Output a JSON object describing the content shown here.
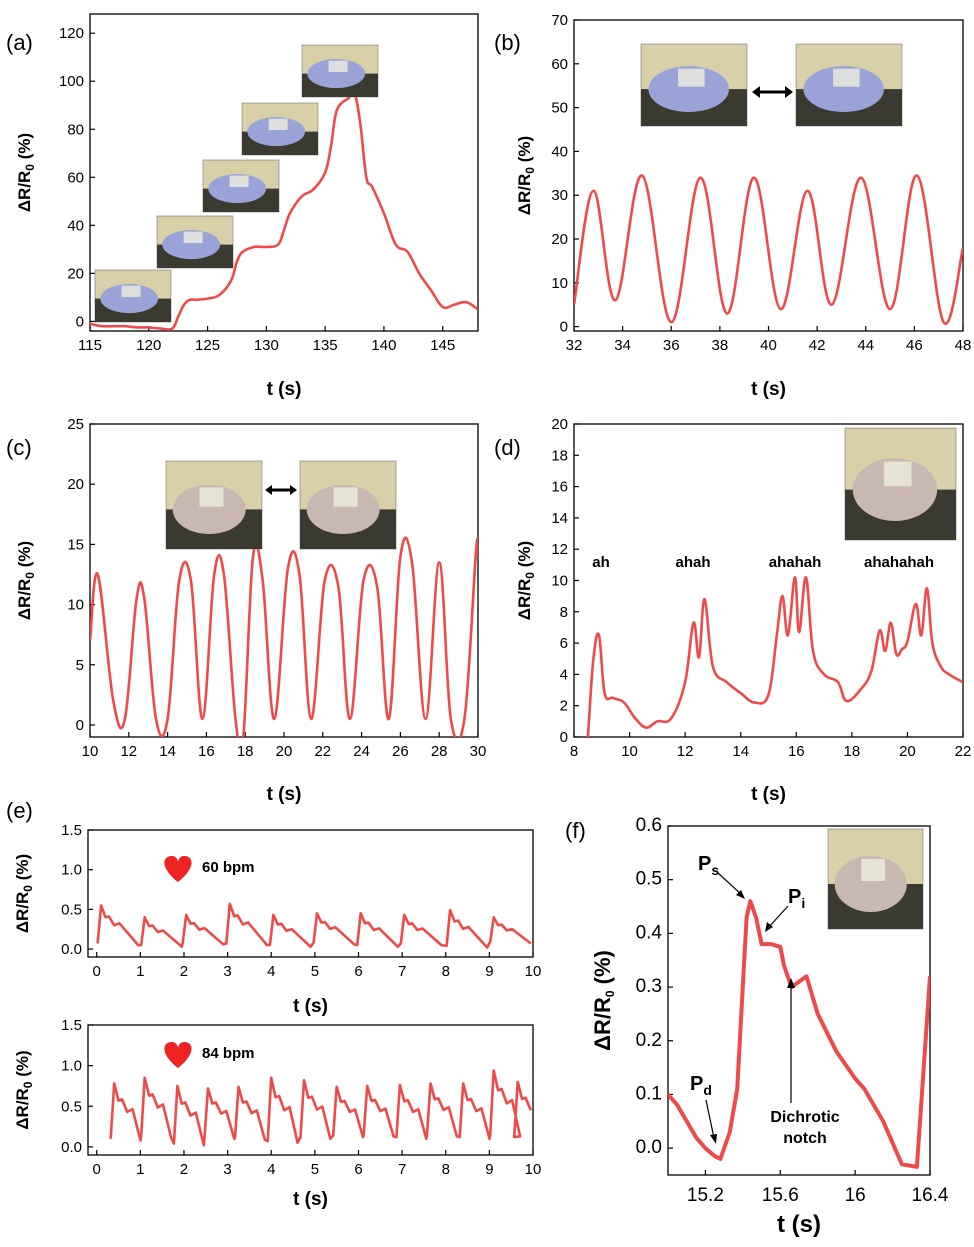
{
  "figure": {
    "colors": {
      "line": "#ef4a4a",
      "axis": "#000000",
      "heart": "#ee2222",
      "photo_skin": "#c9b7b2",
      "photo_glove": "#9aa3d8"
    }
  },
  "chart_data": [
    {
      "id": "a",
      "panel_label": "(a)",
      "type": "line",
      "xlabel": "t (s)",
      "ylabel": "ΔR/R0 (%)",
      "xlim": [
        115,
        148
      ],
      "ylim": [
        -4,
        128
      ],
      "xticks": [
        115,
        120,
        125,
        130,
        135,
        140,
        145
      ],
      "yticks": [
        0,
        20,
        40,
        60,
        80,
        100,
        120
      ],
      "grid": false,
      "series": [
        {
          "x": [
            115,
            116,
            117,
            118,
            119,
            120,
            121,
            122,
            122.5,
            123,
            123.5,
            124,
            125,
            126,
            127,
            127.5,
            128,
            129,
            130,
            131,
            131.5,
            132,
            133,
            134,
            135,
            135.5,
            136,
            137,
            137.5,
            138,
            138.5,
            139,
            140,
            141,
            142,
            143,
            144,
            145,
            146,
            147,
            148
          ],
          "y": [
            -1,
            -2,
            -2,
            -2,
            -2.5,
            -2.5,
            -3,
            -3,
            2,
            7,
            9,
            9,
            9.5,
            11,
            17,
            25,
            29,
            31,
            31,
            32,
            38,
            45,
            52,
            55,
            62,
            73,
            88,
            93,
            95,
            82,
            60,
            56,
            45,
            32,
            29,
            20,
            13,
            6,
            7,
            8,
            5
          ]
        }
      ],
      "inset": "photo: gloved finger bending"
    },
    {
      "id": "b",
      "panel_label": "(b)",
      "type": "line",
      "xlabel": "t (s)",
      "ylabel": "ΔR/R0 (%)",
      "xlim": [
        32,
        48
      ],
      "ylim": [
        -1,
        70
      ],
      "xticks": [
        32,
        34,
        36,
        38,
        40,
        42,
        44,
        46,
        48
      ],
      "yticks": [
        0,
        10,
        20,
        30,
        40,
        50,
        60,
        70
      ],
      "grid": false,
      "series": [
        {
          "x": [
            32,
            32.8,
            33.7,
            34.8,
            36,
            37.2,
            38.3,
            39.4,
            40.5,
            41.6,
            42.6,
            43.8,
            45,
            46.1,
            47.2,
            48
          ],
          "y": [
            5,
            31,
            6,
            34.5,
            1,
            34,
            3,
            34,
            4,
            31,
            5,
            34,
            4,
            34.5,
            1,
            18
          ]
        }
      ],
      "inset": "photos: finger straight ↔ finger bent"
    },
    {
      "id": "c",
      "panel_label": "(c)",
      "type": "line",
      "xlabel": "t (s)",
      "ylabel": "ΔR/R0 (%)",
      "xlim": [
        10,
        30
      ],
      "ylim": [
        -1,
        25
      ],
      "xticks": [
        10,
        12,
        14,
        16,
        18,
        20,
        22,
        24,
        26,
        28,
        30
      ],
      "yticks": [
        0,
        5,
        10,
        15,
        20,
        25
      ],
      "grid": false,
      "series": [
        {
          "x": [
            10,
            10.4,
            11.2,
            11.8,
            12.4,
            12.8,
            13.4,
            14.0,
            14.6,
            15.2,
            15.8,
            16.4,
            16.9,
            17.5,
            17.9,
            18.4,
            18.9,
            19.5,
            20.2,
            20.8,
            21.4,
            22.1,
            22.8,
            23.4,
            24.1,
            24.8,
            25.4,
            26.0,
            26.6,
            27.3,
            28.0,
            28.6,
            29.3,
            29.9,
            30
          ],
          "y": [
            7,
            12.5,
            2,
            0.5,
            10.5,
            10.5,
            0.5,
            0.5,
            12,
            12,
            0.5,
            12.5,
            12.5,
            0.5,
            -1,
            14,
            12,
            0.5,
            13,
            12.5,
            0.5,
            12,
            11.5,
            0.5,
            12,
            11.5,
            0.5,
            14,
            13.5,
            0.5,
            13.5,
            0.5,
            0.5,
            14.5,
            14
          ]
        }
      ],
      "inset": "photos: open hand ↔ fist"
    },
    {
      "id": "d",
      "panel_label": "(d)",
      "type": "line",
      "xlabel": "t (s)",
      "ylabel": "ΔR/R0 (%)",
      "xlim": [
        8,
        22
      ],
      "ylim": [
        0,
        20
      ],
      "xticks": [
        8,
        10,
        12,
        14,
        16,
        18,
        20,
        22
      ],
      "yticks": [
        0,
        2,
        4,
        6,
        8,
        10,
        12,
        14,
        16,
        18,
        20
      ],
      "grid": false,
      "annotations": [
        "ah",
        "ahah",
        "ahahah",
        "ahahahah"
      ],
      "series": [
        {
          "x": [
            8.5,
            8.7,
            8.9,
            9.1,
            9.4,
            9.8,
            10.2,
            10.6,
            11,
            11.5,
            12,
            12.3,
            12.5,
            12.7,
            13,
            13.5,
            14,
            14.5,
            15,
            15.3,
            15.5,
            15.7,
            15.95,
            16.1,
            16.35,
            16.6,
            17,
            17.5,
            17.8,
            18.3,
            18.7,
            19,
            19.2,
            19.4,
            19.6,
            19.8,
            20,
            20.3,
            20.5,
            20.7,
            20.9,
            21.2,
            21.5,
            22
          ],
          "y": [
            0,
            5,
            6.5,
            2.8,
            2.5,
            2.2,
            1.2,
            0.6,
            1,
            1.2,
            3.5,
            7.3,
            5.1,
            8.8,
            4.5,
            3.5,
            2.8,
            2.2,
            2.7,
            6.5,
            9,
            6.5,
            10.2,
            6.7,
            10.2,
            5.5,
            4,
            3.5,
            2.3,
            3,
            4.2,
            6.8,
            5.5,
            7.3,
            5.3,
            5.6,
            6.1,
            8.5,
            6.5,
            9.5,
            6,
            4.5,
            4,
            3.5
          ]
        }
      ],
      "inset": "photo: sensor on throat"
    },
    {
      "id": "e1",
      "panel_label": "(e)",
      "type": "line",
      "xlabel": "t (s)",
      "ylabel": "ΔR/R0 (%)",
      "xlim": [
        -0.2,
        10
      ],
      "ylim": [
        -0.1,
        1.5
      ],
      "xticks": [
        0,
        1,
        2,
        3,
        4,
        5,
        6,
        7,
        8,
        9,
        10
      ],
      "yticks": [
        0.0,
        0.5,
        1.0,
        1.5
      ],
      "grid": false,
      "annotations": [
        "60 bpm"
      ],
      "series": [
        {
          "pulse_times": [
            0.1,
            1.1,
            2.05,
            3.05,
            4.05,
            5.05,
            6.05,
            7.05,
            8.1,
            9.1
          ],
          "peaks": [
            0.55,
            0.4,
            0.43,
            0.57,
            0.43,
            0.45,
            0.45,
            0.43,
            0.49,
            0.4
          ],
          "troughs": [
            0.05,
            0.03,
            0.06,
            0.05,
            0.03,
            0.06,
            0.03,
            0.05,
            0.02,
            0.07
          ],
          "period": 1.0
        }
      ]
    },
    {
      "id": "e2",
      "panel_label": "",
      "type": "line",
      "xlabel": "t (s)",
      "ylabel": "ΔR/R0 (%)",
      "xlim": [
        -0.2,
        10
      ],
      "ylim": [
        -0.1,
        1.5
      ],
      "xticks": [
        0,
        1,
        2,
        3,
        4,
        5,
        6,
        7,
        8,
        9,
        10
      ],
      "yticks": [
        0.0,
        0.5,
        1.0,
        1.5
      ],
      "grid": false,
      "annotations": [
        "84 bpm"
      ],
      "series": [
        {
          "pulse_times": [
            0.4,
            1.1,
            1.85,
            2.55,
            3.25,
            4.0,
            4.75,
            5.5,
            6.2,
            6.95,
            7.65,
            8.4,
            9.1,
            9.65
          ],
          "peaks": [
            0.78,
            0.85,
            0.75,
            0.72,
            0.74,
            0.85,
            0.82,
            0.74,
            0.75,
            0.76,
            0.78,
            0.78,
            0.94,
            0.8
          ],
          "troughs": [
            0.08,
            0.12,
            0.02,
            0.1,
            0.09,
            0.05,
            0.1,
            0.12,
            0.13,
            0.1,
            0.13,
            0.1,
            0.13,
            0.1
          ],
          "period": 0.71
        }
      ]
    },
    {
      "id": "f",
      "panel_label": "(f)",
      "type": "line",
      "xlabel": "t (s)",
      "ylabel": "ΔR/R0 (%)",
      "xlim": [
        15.0,
        16.4
      ],
      "ylim": [
        -0.05,
        0.6
      ],
      "xticks": [
        15.2,
        15.6,
        16.0,
        16.4
      ],
      "yticks": [
        0.0,
        0.1,
        0.2,
        0.3,
        0.4,
        0.5,
        0.6
      ],
      "grid": false,
      "annotations": [
        "Ps",
        "Pi",
        "Pd",
        "Dichrotic notch"
      ],
      "series": [
        {
          "x": [
            15.0,
            15.05,
            15.1,
            15.15,
            15.2,
            15.25,
            15.28,
            15.33,
            15.37,
            15.42,
            15.44,
            15.47,
            15.5,
            15.55,
            15.6,
            15.62,
            15.66,
            15.7,
            15.74,
            15.8,
            15.9,
            16.0,
            16.05,
            16.15,
            16.25,
            16.33,
            16.4
          ],
          "y": [
            0.1,
            0.08,
            0.05,
            0.02,
            0.0,
            -0.015,
            -0.02,
            0.03,
            0.11,
            0.43,
            0.46,
            0.43,
            0.38,
            0.38,
            0.375,
            0.34,
            0.3,
            0.31,
            0.32,
            0.25,
            0.18,
            0.13,
            0.11,
            0.05,
            -0.03,
            -0.035,
            0.32
          ]
        }
      ],
      "inset": "photo: sensor on wrist"
    }
  ]
}
